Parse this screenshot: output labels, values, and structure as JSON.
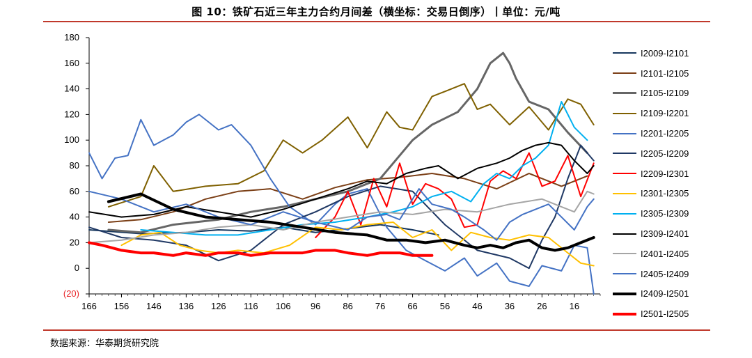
{
  "header": {
    "title": "图 10：铁矿石近三年主力合约月间差（横坐标：交易日倒序）丨单位：元/吨"
  },
  "footer": {
    "source": "数据来源：华泰期货研究院"
  },
  "chart_data": {
    "type": "line",
    "title": "图 10：铁矿石近三年主力合约月间差（横坐标：交易日倒序）丨单位：元/吨",
    "xlabel": "",
    "ylabel": "",
    "x_axis": {
      "reversed": true,
      "range": [
        166,
        8
      ],
      "ticks": [
        166,
        156,
        146,
        136,
        126,
        116,
        106,
        96,
        86,
        76,
        66,
        56,
        46,
        36,
        26,
        16
      ]
    },
    "y_axis": {
      "range": [
        -20,
        180
      ],
      "ticks": [
        180,
        160,
        140,
        120,
        100,
        80,
        60,
        40,
        20,
        0,
        -20
      ],
      "tick_labels": [
        "180",
        "160",
        "140",
        "120",
        "100",
        "80",
        "60",
        "40",
        "20",
        "0",
        "(20)"
      ],
      "negative_color": "#e8262a"
    },
    "grid": false,
    "legend_position": "right",
    "series": [
      {
        "name": "I2009-I2101",
        "color": "#17375e",
        "width": 2,
        "x": [
          166,
          150,
          136,
          126,
          116,
          106,
          96,
          86,
          76,
          66,
          58
        ],
        "y": [
          30,
          27,
          28,
          30,
          29,
          32,
          28,
          31,
          34,
          30,
          26
        ]
      },
      {
        "name": "I2101-I2105",
        "color": "#7b3f16",
        "width": 2,
        "x": [
          160,
          150,
          140,
          130,
          120,
          110,
          100,
          90,
          80,
          70,
          60,
          50,
          40,
          30,
          20,
          12
        ],
        "y": [
          36,
          38,
          44,
          54,
          60,
          62,
          54,
          63,
          69,
          71,
          74,
          70,
          62,
          74,
          64,
          72
        ]
      },
      {
        "name": "I2105-I2109",
        "color": "#666666",
        "width": 3,
        "x": [
          160,
          150,
          140,
          126,
          116,
          106,
          96,
          86,
          76,
          66,
          60,
          52,
          46,
          42,
          38,
          36,
          34,
          30,
          24,
          18,
          12
        ],
        "y": [
          30,
          28,
          34,
          38,
          44,
          48,
          54,
          60,
          70,
          100,
          112,
          122,
          140,
          160,
          168,
          160,
          148,
          130,
          124,
          106,
          90
        ]
      },
      {
        "name": "I2109-I2201",
        "color": "#7f6000",
        "width": 2,
        "x": [
          160,
          150,
          146,
          140,
          130,
          120,
          112,
          106,
          100,
          94,
          86,
          80,
          74,
          70,
          66,
          60,
          56,
          50,
          46,
          42,
          36,
          30,
          24,
          18,
          14,
          10
        ],
        "y": [
          48,
          56,
          80,
          60,
          64,
          66,
          76,
          100,
          90,
          100,
          118,
          94,
          122,
          110,
          108,
          134,
          138,
          144,
          124,
          128,
          112,
          126,
          108,
          132,
          128,
          112
        ]
      },
      {
        "name": "I2201-I2205",
        "color": "#4472c4",
        "width": 2,
        "x": [
          166,
          162,
          158,
          154,
          150,
          146,
          140,
          136,
          132,
          126,
          122,
          116,
          110,
          104,
          96,
          90,
          86,
          80,
          74,
          68,
          62,
          56,
          50,
          46,
          40,
          36,
          30,
          26,
          20,
          16,
          12,
          10
        ],
        "y": [
          90,
          70,
          86,
          88,
          116,
          96,
          104,
          114,
          120,
          108,
          112,
          96,
          70,
          48,
          34,
          50,
          58,
          62,
          32,
          14,
          6,
          -2,
          8,
          -6,
          4,
          -10,
          -14,
          2,
          -2,
          18,
          16,
          -20
        ]
      },
      {
        "name": "I2205-I2209",
        "color": "#1f3864",
        "width": 2,
        "x": [
          166,
          156,
          146,
          136,
          126,
          116,
          106,
          96,
          86,
          76,
          66,
          56,
          46,
          36,
          30,
          26,
          22,
          18,
          14,
          10
        ],
        "y": [
          32,
          24,
          22,
          18,
          6,
          14,
          34,
          44,
          56,
          64,
          60,
          34,
          14,
          8,
          0,
          22,
          40,
          70,
          96,
          84
        ]
      },
      {
        "name": "I2209-I2301",
        "color": "#ff0000",
        "width": 2,
        "x": [
          96,
          90,
          86,
          82,
          78,
          74,
          70,
          66,
          62,
          58,
          54,
          50,
          46,
          42,
          38,
          34,
          30,
          26,
          22,
          18,
          14,
          10
        ],
        "y": [
          24,
          40,
          60,
          34,
          70,
          48,
          82,
          50,
          66,
          62,
          54,
          32,
          34,
          68,
          76,
          70,
          90,
          64,
          68,
          88,
          56,
          82
        ]
      },
      {
        "name": "I2301-I2305",
        "color": "#ffc000",
        "width": 2,
        "x": [
          156,
          150,
          144,
          138,
          132,
          126,
          120,
          112,
          104,
          96,
          88,
          80,
          72,
          66,
          60,
          54,
          48,
          42,
          36,
          30,
          24,
          18,
          14,
          10
        ],
        "y": [
          18,
          26,
          28,
          18,
          14,
          12,
          14,
          12,
          18,
          32,
          30,
          34,
          36,
          24,
          30,
          14,
          28,
          24,
          22,
          26,
          24,
          12,
          4,
          2
        ]
      },
      {
        "name": "I2305-I2309",
        "color": "#00b0f0",
        "width": 2,
        "x": [
          150,
          140,
          130,
          120,
          110,
          100,
          90,
          80,
          72,
          66,
          60,
          54,
          48,
          44,
          40,
          36,
          32,
          28,
          24,
          20,
          16,
          12
        ],
        "y": [
          30,
          28,
          26,
          26,
          30,
          34,
          36,
          40,
          44,
          48,
          56,
          60,
          52,
          66,
          74,
          70,
          80,
          86,
          96,
          130,
          110,
          100
        ]
      },
      {
        "name": "I2309-I2401",
        "color": "#000000",
        "width": 2,
        "x": [
          166,
          156,
          146,
          136,
          126,
          116,
          106,
          96,
          86,
          80,
          74,
          68,
          62,
          58,
          52,
          46,
          40,
          36,
          32,
          28,
          24,
          20,
          16,
          12,
          10
        ],
        "y": [
          44,
          40,
          42,
          48,
          44,
          40,
          46,
          54,
          62,
          68,
          66,
          74,
          78,
          80,
          70,
          78,
          82,
          86,
          92,
          96,
          98,
          96,
          84,
          74,
          80
        ]
      },
      {
        "name": "I2401-I2405",
        "color": "#a5a5a5",
        "width": 2,
        "x": [
          166,
          156,
          146,
          136,
          126,
          116,
          106,
          96,
          86,
          76,
          66,
          56,
          46,
          36,
          26,
          20,
          16,
          12,
          10
        ],
        "y": [
          20,
          22,
          26,
          28,
          32,
          34,
          30,
          36,
          40,
          44,
          42,
          46,
          44,
          50,
          54,
          48,
          44,
          60,
          58
        ]
      },
      {
        "name": "I2405-I2409",
        "color": "#4472c4",
        "width": 2,
        "x": [
          166,
          156,
          146,
          136,
          126,
          116,
          106,
          96,
          86,
          80,
          74,
          70,
          64,
          60,
          54,
          50,
          44,
          40,
          36,
          32,
          28,
          24,
          20,
          16,
          12,
          10
        ],
        "y": [
          60,
          54,
          44,
          50,
          40,
          34,
          44,
          36,
          30,
          40,
          42,
          38,
          62,
          50,
          46,
          40,
          30,
          22,
          36,
          42,
          46,
          50,
          40,
          30,
          48,
          54
        ]
      },
      {
        "name": "I2409-I2501",
        "color": "#000000",
        "width": 4,
        "x": [
          160,
          150,
          140,
          130,
          120,
          110,
          100,
          90,
          80,
          74,
          68,
          62,
          56,
          50,
          46,
          42,
          38,
          34,
          30,
          26,
          22,
          18,
          14,
          10
        ],
        "y": [
          52,
          58,
          46,
          40,
          38,
          36,
          32,
          28,
          26,
          22,
          22,
          20,
          22,
          18,
          16,
          18,
          16,
          20,
          22,
          16,
          14,
          16,
          20,
          24
        ]
      },
      {
        "name": "I2501-I2505",
        "color": "#ff0000",
        "width": 4,
        "x": [
          166,
          162,
          156,
          150,
          146,
          140,
          136,
          130,
          126,
          120,
          116,
          110,
          106,
          100,
          96,
          90,
          86,
          80,
          76,
          70,
          66,
          62,
          60
        ],
        "y": [
          20,
          18,
          14,
          12,
          12,
          10,
          12,
          10,
          12,
          12,
          10,
          12,
          12,
          12,
          14,
          14,
          12,
          10,
          12,
          12,
          10,
          10,
          10
        ]
      }
    ]
  }
}
